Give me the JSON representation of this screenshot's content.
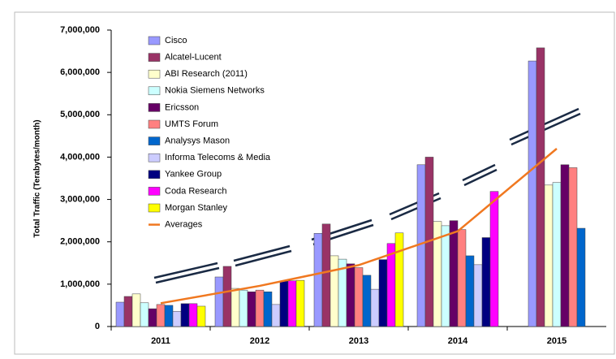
{
  "chart_data": {
    "type": "bar",
    "ylabel": "Total Traffic (Terabytes/month)",
    "categories": [
      "2011",
      "2012",
      "2013",
      "2014",
      "2015"
    ],
    "ylim": [
      0,
      7000000
    ],
    "yticks": [
      0,
      {
        "value": 1000000,
        "label": "1,000,000"
      },
      {
        "value": 2000000,
        "label": "2,000,000"
      },
      {
        "value": 3000000,
        "label": "3,000,000"
      },
      {
        "value": 4000000,
        "label": "4,000,000"
      },
      {
        "value": 5000000,
        "label": "5,000,000"
      },
      {
        "value": 6000000,
        "label": "6,000,000"
      },
      {
        "value": 7000000,
        "label": "7,000,000"
      }
    ],
    "series": [
      {
        "name": "Cisco",
        "color": "#9999ff",
        "values": [
          575000,
          1170000,
          2200000,
          3820000,
          6270000
        ]
      },
      {
        "name": "Alcatel-Lucent",
        "color": "#993366",
        "values": [
          710000,
          1420000,
          2420000,
          4000000,
          6580000
        ]
      },
      {
        "name": "ABI Research (2011)",
        "color": "#ffffcc",
        "values": [
          770000,
          900000,
          1670000,
          2480000,
          3340000
        ]
      },
      {
        "name": "Nokia Siemens Networks",
        "color": "#ccffff",
        "values": [
          560000,
          860000,
          1590000,
          2380000,
          3400000
        ]
      },
      {
        "name": "Ericsson",
        "color": "#660066",
        "values": [
          420000,
          820000,
          1480000,
          2500000,
          3820000
        ]
      },
      {
        "name": "UMTS Forum",
        "color": "#ff8080",
        "values": [
          520000,
          860000,
          1390000,
          2290000,
          3750000
        ]
      },
      {
        "name": "Analysys Mason",
        "color": "#0066cc",
        "values": [
          500000,
          820000,
          1210000,
          1670000,
          2320000
        ]
      },
      {
        "name": "Informa Telecoms & Media",
        "color": "#ccccff",
        "values": [
          360000,
          520000,
          880000,
          1460000,
          null
        ]
      },
      {
        "name": "Yankee Group",
        "color": "#000080",
        "values": [
          540000,
          1070000,
          1580000,
          2100000,
          null
        ]
      },
      {
        "name": "Coda Research",
        "color": "#ff00ff",
        "values": [
          540000,
          1080000,
          1960000,
          3190000,
          null
        ]
      },
      {
        "name": "Morgan Stanley",
        "color": "#ffff00",
        "values": [
          480000,
          1090000,
          2210000,
          null,
          null
        ]
      },
      {
        "name": "Averages",
        "color": "#f07820",
        "type": "line",
        "values": [
          550000,
          960000,
          1450000,
          2250000,
          4200000
        ]
      }
    ]
  }
}
